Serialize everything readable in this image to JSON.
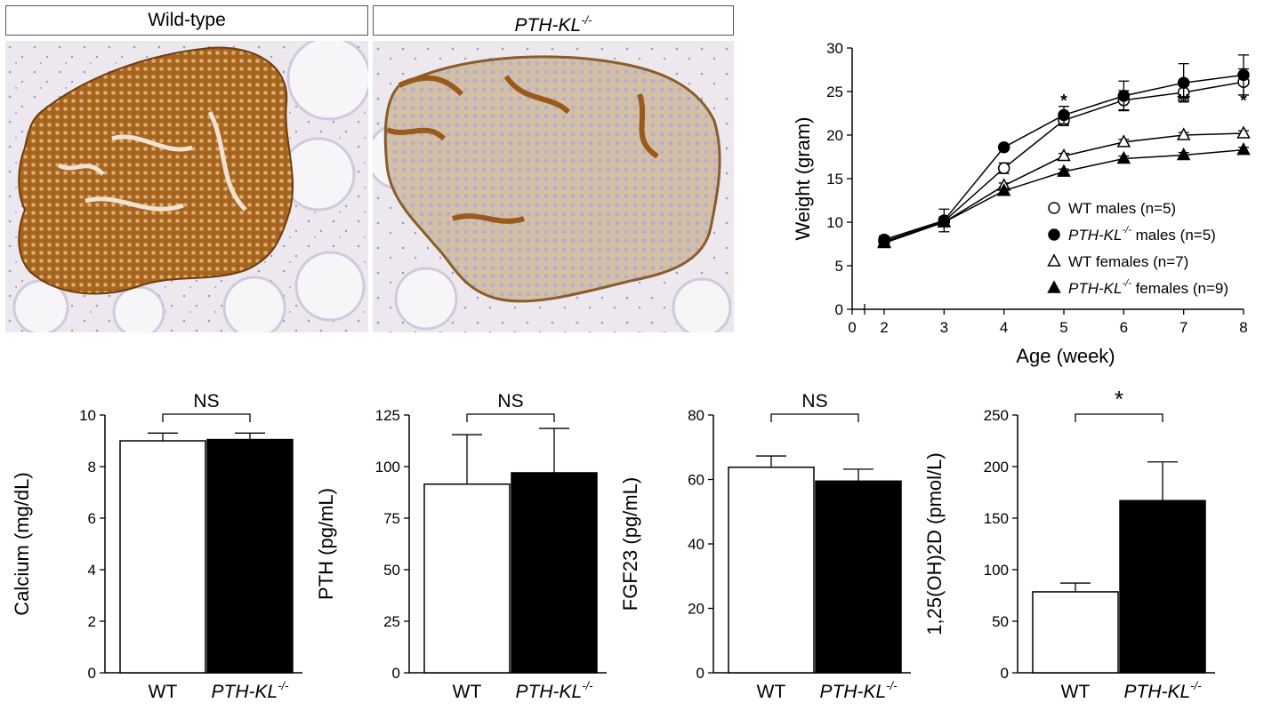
{
  "panel_labels": {
    "wild_type": "Wild-type",
    "knockout_base": "PTH-KL",
    "knockout_sup": "-/-"
  },
  "chart_data": [
    {
      "type": "line",
      "xlabel": "Age (week)",
      "ylabel": "Weight (gram)",
      "xlim": [
        0,
        8
      ],
      "ylim": [
        0,
        30
      ],
      "x_ticks": [
        0,
        2,
        3,
        4,
        5,
        6,
        7,
        8
      ],
      "y_ticks": [
        0,
        5,
        10,
        15,
        20,
        25,
        30
      ],
      "x": [
        2,
        3,
        4,
        5,
        6,
        7,
        8
      ],
      "legend_position": "bottom-right",
      "series": [
        {
          "name": "WT males (n=5)",
          "name_it": "",
          "name_rest": "WT males (n=5)",
          "marker": "circle-open",
          "values": [
            7.8,
            10.1,
            16.2,
            21.7,
            24.0,
            24.9,
            26.1
          ],
          "errors": [
            0.4,
            0.5,
            0.6,
            0.6,
            1.1,
            1.0,
            1.5
          ]
        },
        {
          "name": "PTH-KL-/- males (n=5)",
          "name_it": "PTH-KL",
          "name_rest": " males (n=5)",
          "marker": "circle-filled",
          "values": [
            8.0,
            10.2,
            18.6,
            22.3,
            24.5,
            26.0,
            26.9
          ],
          "errors": [
            0.4,
            1.3,
            0.0,
            1.0,
            1.7,
            2.2,
            2.3
          ]
        },
        {
          "name": "WT females (n=7)",
          "name_it": "",
          "name_rest": "WT females (n=7)",
          "marker": "triangle-open",
          "values": [
            7.7,
            10.0,
            14.2,
            17.6,
            19.2,
            20.0,
            20.2
          ],
          "errors": [
            0.3,
            0.3,
            0.3,
            0.3,
            0.3,
            0.3,
            0.3
          ]
        },
        {
          "name": "PTH-KL-/- females (n=9)",
          "name_it": "PTH-KL",
          "name_rest": " females (n=9)",
          "marker": "triangle-filled",
          "values": [
            7.6,
            10.0,
            13.6,
            15.8,
            17.3,
            17.7,
            18.3
          ],
          "errors": [
            0.3,
            0.3,
            0.3,
            0.3,
            0.3,
            0.3,
            0.3
          ]
        }
      ],
      "annotations": [
        {
          "x": 5,
          "text": "*"
        },
        {
          "x": 6,
          "text": "*"
        },
        {
          "x": 7,
          "text": "**"
        },
        {
          "x": 8,
          "text": "*"
        }
      ]
    },
    {
      "type": "bar",
      "categories": [
        "WT",
        "PTH-KL-/-"
      ],
      "values": [
        9.0,
        9.05
      ],
      "errors": [
        0.3,
        0.25
      ],
      "colors": [
        "#ffffff",
        "#000000"
      ],
      "ylabel": "Calcium (mg/dL)",
      "ylim": [
        0,
        10
      ],
      "y_ticks": [
        0,
        2,
        4,
        6,
        8,
        10
      ],
      "significance": "NS"
    },
    {
      "type": "bar",
      "categories": [
        "WT",
        "PTH-KL-/-"
      ],
      "values": [
        91.5,
        97
      ],
      "errors": [
        24,
        21.5
      ],
      "colors": [
        "#ffffff",
        "#000000"
      ],
      "ylabel": "PTH (pg/mL)",
      "ylim": [
        0,
        125
      ],
      "y_ticks": [
        0,
        25,
        50,
        75,
        100,
        125
      ],
      "significance": "NS"
    },
    {
      "type": "bar",
      "categories": [
        "WT",
        "PTH-KL-/-"
      ],
      "values": [
        63.8,
        59.5
      ],
      "errors": [
        3.5,
        3.7
      ],
      "colors": [
        "#ffffff",
        "#000000"
      ],
      "ylabel": "FGF23 (pg/mL)",
      "ylim": [
        0,
        80
      ],
      "y_ticks": [
        0,
        20,
        40,
        60,
        80
      ],
      "significance": "NS"
    },
    {
      "type": "bar",
      "categories": [
        "WT",
        "PTH-KL-/-"
      ],
      "values": [
        78.5,
        167
      ],
      "errors": [
        8.5,
        37.5
      ],
      "colors": [
        "#ffffff",
        "#000000"
      ],
      "ylabel": "1,25(OH)2D (pmol/L)",
      "ylim": [
        0,
        250
      ],
      "y_ticks": [
        0,
        50,
        100,
        150,
        200,
        250
      ],
      "significance": "*"
    }
  ]
}
